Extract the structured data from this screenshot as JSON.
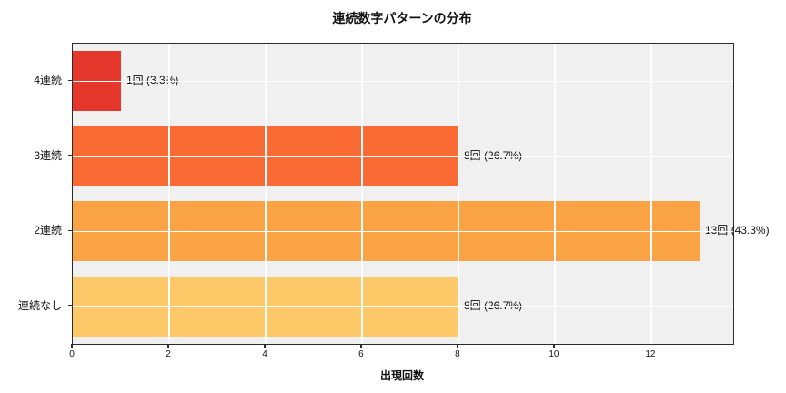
{
  "chart_data": {
    "type": "bar",
    "orientation": "horizontal",
    "title": "連続数字パターンの分布",
    "xlabel": "出現回数",
    "ylabel": "",
    "categories": [
      "4連続",
      "3連続",
      "2連続",
      "連続なし"
    ],
    "values": [
      1,
      8,
      13,
      8
    ],
    "value_labels": [
      "1回 (3.3%)",
      "8回 (26.7%)",
      "13回 (43.3%)",
      "8回 (26.7%)"
    ],
    "bar_colors": [
      "#e5372b",
      "#fa6a35",
      "#faa344",
      "#fdc968"
    ],
    "xticks": [
      0,
      2,
      4,
      6,
      8,
      10,
      12
    ],
    "xlim": [
      0,
      13.7
    ],
    "grid": true,
    "legend": "none",
    "plot_background": "#f0f0f0",
    "grid_color": "#ffffff",
    "spine_color": "#2b2b2b",
    "text_color": "#111111"
  }
}
